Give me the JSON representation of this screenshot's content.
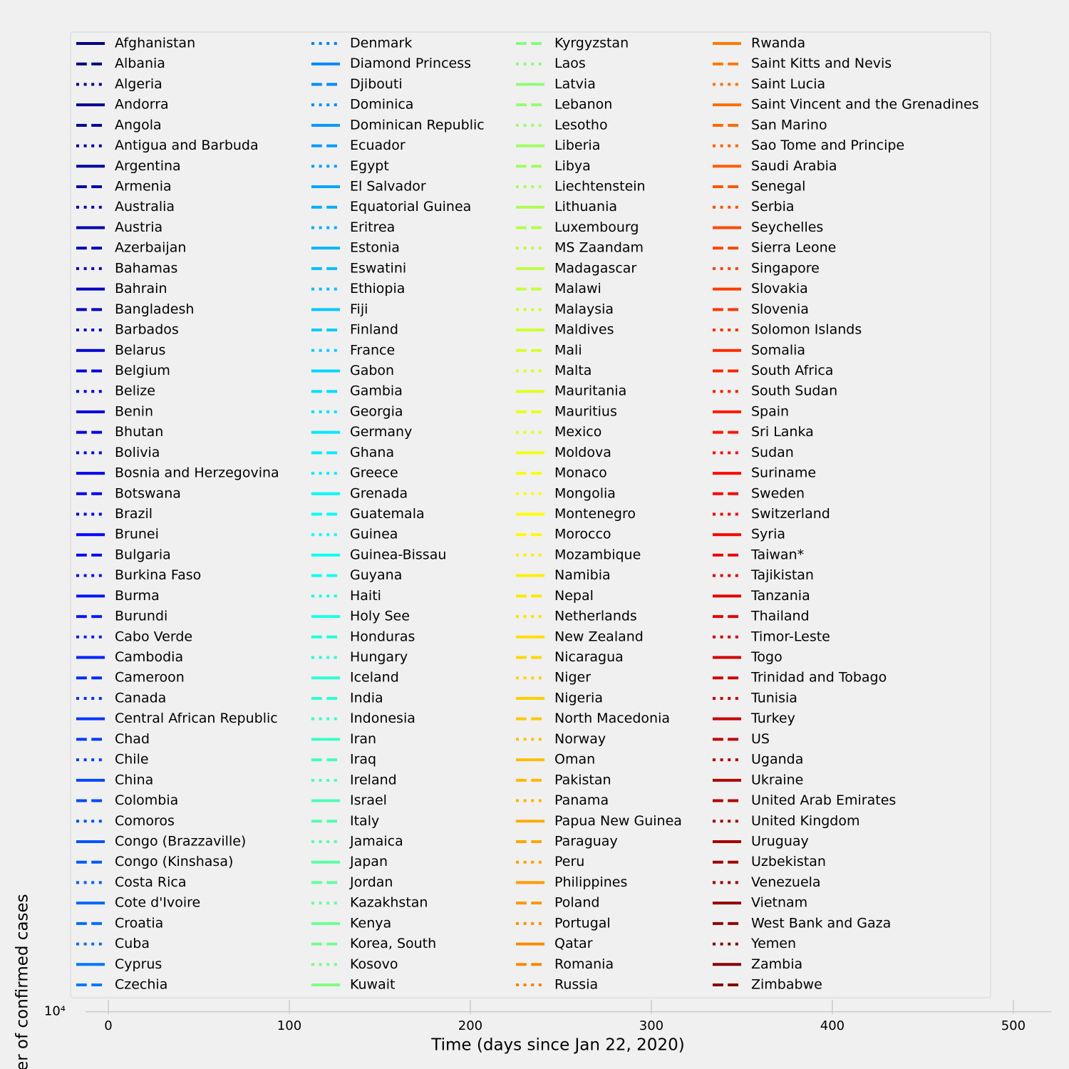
{
  "chart_data": {
    "type": "line",
    "xlabel": "Time (days since Jan 22, 2020)",
    "ylabel": "Number of confirmed cases",
    "xlim": [
      -12.6,
      520.9
    ],
    "xticks": [
      0,
      100,
      200,
      300,
      400,
      500
    ],
    "ylim": [
      9900,
      10500
    ],
    "yticks": [
      {
        "value": 10000,
        "label": "10⁴"
      }
    ],
    "yscale": "log",
    "grid": true,
    "colormap": "jet",
    "linestyles": [
      "solid",
      "dashed",
      "dotted"
    ],
    "legend_columns": 4,
    "legend": "upper center",
    "series": [
      {
        "name": "Afghanistan"
      },
      {
        "name": "Albania"
      },
      {
        "name": "Algeria"
      },
      {
        "name": "Andorra"
      },
      {
        "name": "Angola"
      },
      {
        "name": "Antigua and Barbuda"
      },
      {
        "name": "Argentina"
      },
      {
        "name": "Armenia"
      },
      {
        "name": "Australia"
      },
      {
        "name": "Austria"
      },
      {
        "name": "Azerbaijan"
      },
      {
        "name": "Bahamas"
      },
      {
        "name": "Bahrain"
      },
      {
        "name": "Bangladesh"
      },
      {
        "name": "Barbados"
      },
      {
        "name": "Belarus"
      },
      {
        "name": "Belgium"
      },
      {
        "name": "Belize"
      },
      {
        "name": "Benin"
      },
      {
        "name": "Bhutan"
      },
      {
        "name": "Bolivia"
      },
      {
        "name": "Bosnia and Herzegovina"
      },
      {
        "name": "Botswana"
      },
      {
        "name": "Brazil"
      },
      {
        "name": "Brunei"
      },
      {
        "name": "Bulgaria"
      },
      {
        "name": "Burkina Faso"
      },
      {
        "name": "Burma"
      },
      {
        "name": "Burundi"
      },
      {
        "name": "Cabo Verde"
      },
      {
        "name": "Cambodia"
      },
      {
        "name": "Cameroon"
      },
      {
        "name": "Canada"
      },
      {
        "name": "Central African Republic"
      },
      {
        "name": "Chad"
      },
      {
        "name": "Chile"
      },
      {
        "name": "China"
      },
      {
        "name": "Colombia"
      },
      {
        "name": "Comoros"
      },
      {
        "name": "Congo (Brazzaville)"
      },
      {
        "name": "Congo (Kinshasa)"
      },
      {
        "name": "Costa Rica"
      },
      {
        "name": "Cote d'Ivoire"
      },
      {
        "name": "Croatia"
      },
      {
        "name": "Cuba"
      },
      {
        "name": "Cyprus"
      },
      {
        "name": "Czechia"
      },
      {
        "name": "Denmark"
      },
      {
        "name": "Diamond Princess"
      },
      {
        "name": "Djibouti"
      },
      {
        "name": "Dominica"
      },
      {
        "name": "Dominican Republic"
      },
      {
        "name": "Ecuador"
      },
      {
        "name": "Egypt"
      },
      {
        "name": "El Salvador"
      },
      {
        "name": "Equatorial Guinea"
      },
      {
        "name": "Eritrea"
      },
      {
        "name": "Estonia"
      },
      {
        "name": "Eswatini"
      },
      {
        "name": "Ethiopia"
      },
      {
        "name": "Fiji"
      },
      {
        "name": "Finland"
      },
      {
        "name": "France"
      },
      {
        "name": "Gabon"
      },
      {
        "name": "Gambia"
      },
      {
        "name": "Georgia"
      },
      {
        "name": "Germany"
      },
      {
        "name": "Ghana"
      },
      {
        "name": "Greece"
      },
      {
        "name": "Grenada"
      },
      {
        "name": "Guatemala"
      },
      {
        "name": "Guinea"
      },
      {
        "name": "Guinea-Bissau"
      },
      {
        "name": "Guyana"
      },
      {
        "name": "Haiti"
      },
      {
        "name": "Holy See"
      },
      {
        "name": "Honduras"
      },
      {
        "name": "Hungary"
      },
      {
        "name": "Iceland"
      },
      {
        "name": "India"
      },
      {
        "name": "Indonesia"
      },
      {
        "name": "Iran"
      },
      {
        "name": "Iraq"
      },
      {
        "name": "Ireland"
      },
      {
        "name": "Israel"
      },
      {
        "name": "Italy"
      },
      {
        "name": "Jamaica"
      },
      {
        "name": "Japan"
      },
      {
        "name": "Jordan"
      },
      {
        "name": "Kazakhstan"
      },
      {
        "name": "Kenya"
      },
      {
        "name": "Korea, South"
      },
      {
        "name": "Kosovo"
      },
      {
        "name": "Kuwait"
      },
      {
        "name": "Kyrgyzstan"
      },
      {
        "name": "Laos"
      },
      {
        "name": "Latvia"
      },
      {
        "name": "Lebanon"
      },
      {
        "name": "Lesotho"
      },
      {
        "name": "Liberia"
      },
      {
        "name": "Libya"
      },
      {
        "name": "Liechtenstein"
      },
      {
        "name": "Lithuania"
      },
      {
        "name": "Luxembourg"
      },
      {
        "name": "MS Zaandam"
      },
      {
        "name": "Madagascar"
      },
      {
        "name": "Malawi"
      },
      {
        "name": "Malaysia"
      },
      {
        "name": "Maldives"
      },
      {
        "name": "Mali"
      },
      {
        "name": "Malta"
      },
      {
        "name": "Mauritania"
      },
      {
        "name": "Mauritius"
      },
      {
        "name": "Mexico"
      },
      {
        "name": "Moldova"
      },
      {
        "name": "Monaco"
      },
      {
        "name": "Mongolia"
      },
      {
        "name": "Montenegro"
      },
      {
        "name": "Morocco"
      },
      {
        "name": "Mozambique"
      },
      {
        "name": "Namibia"
      },
      {
        "name": "Nepal"
      },
      {
        "name": "Netherlands"
      },
      {
        "name": "New Zealand"
      },
      {
        "name": "Nicaragua"
      },
      {
        "name": "Niger"
      },
      {
        "name": "Nigeria"
      },
      {
        "name": "North Macedonia"
      },
      {
        "name": "Norway"
      },
      {
        "name": "Oman"
      },
      {
        "name": "Pakistan"
      },
      {
        "name": "Panama"
      },
      {
        "name": "Papua New Guinea"
      },
      {
        "name": "Paraguay"
      },
      {
        "name": "Peru"
      },
      {
        "name": "Philippines"
      },
      {
        "name": "Poland"
      },
      {
        "name": "Portugal"
      },
      {
        "name": "Qatar"
      },
      {
        "name": "Romania"
      },
      {
        "name": "Russia"
      },
      {
        "name": "Rwanda"
      },
      {
        "name": "Saint Kitts and Nevis"
      },
      {
        "name": "Saint Lucia"
      },
      {
        "name": "Saint Vincent and the Grenadines"
      },
      {
        "name": "San Marino"
      },
      {
        "name": "Sao Tome and Principe"
      },
      {
        "name": "Saudi Arabia"
      },
      {
        "name": "Senegal"
      },
      {
        "name": "Serbia"
      },
      {
        "name": "Seychelles"
      },
      {
        "name": "Sierra Leone"
      },
      {
        "name": "Singapore"
      },
      {
        "name": "Slovakia"
      },
      {
        "name": "Slovenia"
      },
      {
        "name": "Solomon Islands"
      },
      {
        "name": "Somalia"
      },
      {
        "name": "South Africa"
      },
      {
        "name": "South Sudan"
      },
      {
        "name": "Spain"
      },
      {
        "name": "Sri Lanka"
      },
      {
        "name": "Sudan"
      },
      {
        "name": "Suriname"
      },
      {
        "name": "Sweden"
      },
      {
        "name": "Switzerland"
      },
      {
        "name": "Syria"
      },
      {
        "name": "Taiwan*"
      },
      {
        "name": "Tajikistan"
      },
      {
        "name": "Tanzania"
      },
      {
        "name": "Thailand"
      },
      {
        "name": "Timor-Leste"
      },
      {
        "name": "Togo"
      },
      {
        "name": "Trinidad and Tobago"
      },
      {
        "name": "Tunisia"
      },
      {
        "name": "Turkey"
      },
      {
        "name": "US"
      },
      {
        "name": "Uganda"
      },
      {
        "name": "Ukraine"
      },
      {
        "name": "United Arab Emirates"
      },
      {
        "name": "United Kingdom"
      },
      {
        "name": "Uruguay"
      },
      {
        "name": "Uzbekistan"
      },
      {
        "name": "Venezuela"
      },
      {
        "name": "Vietnam"
      },
      {
        "name": "West Bank and Gaza"
      },
      {
        "name": "Yemen"
      },
      {
        "name": "Zambia"
      },
      {
        "name": "Zimbabwe"
      }
    ]
  }
}
